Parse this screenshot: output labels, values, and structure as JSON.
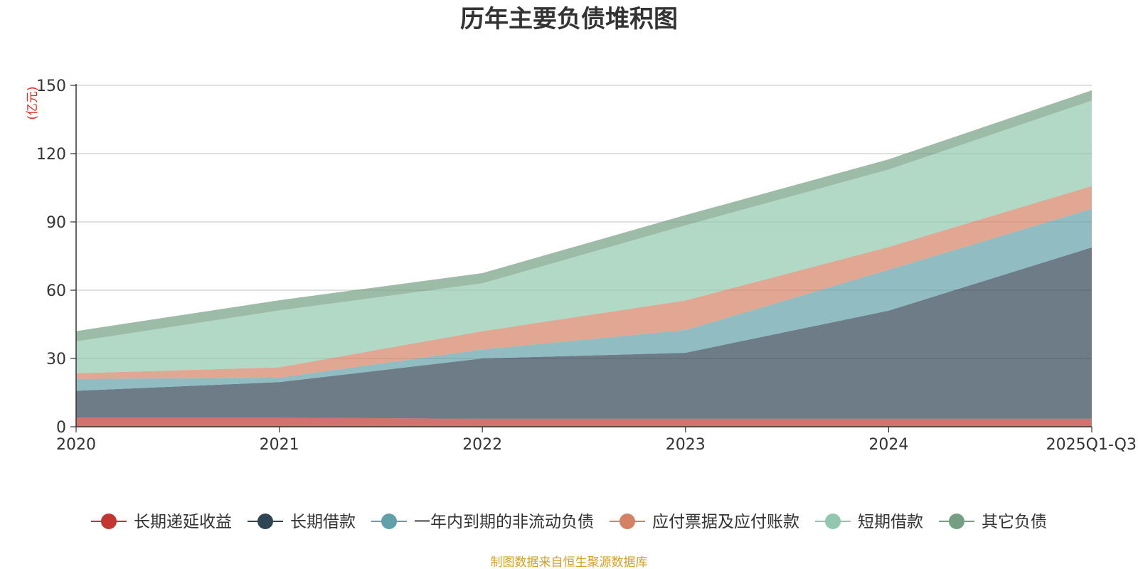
{
  "chart_data": {
    "type": "area",
    "stacked": true,
    "title": "历年主要负债堆积图",
    "unit_label": "(亿元)",
    "source_note": "制图数据来自恒生聚源数据库",
    "categories": [
      "2020",
      "2021",
      "2022",
      "2023",
      "2024",
      "2025Q1-Q3"
    ],
    "ylim": [
      0,
      150
    ],
    "yticks": [
      0,
      30,
      60,
      90,
      120,
      150
    ],
    "grid": true,
    "legend_position": "bottom",
    "series": [
      {
        "name": "长期递延收益",
        "color": "#c23531",
        "values": [
          4,
          4,
          3.5,
          3.5,
          3.5,
          3.5
        ]
      },
      {
        "name": "长期借款",
        "color": "#2f4554",
        "values": [
          11.8,
          15.6,
          26.5,
          29,
          47.5,
          75.3
        ]
      },
      {
        "name": "一年内到期的非流动负债",
        "color": "#61a0a8",
        "values": [
          5.2,
          2,
          4,
          10,
          18,
          17
        ]
      },
      {
        "name": "应付票据及应付账款",
        "color": "#d48265",
        "values": [
          2.5,
          4.5,
          8,
          13,
          10,
          10
        ]
      },
      {
        "name": "短期借款",
        "color": "#91c7ae",
        "values": [
          14,
          25,
          21,
          33,
          34,
          37.5
        ]
      },
      {
        "name": "其它负债",
        "color": "#749f83",
        "values": [
          4.5,
          4.5,
          4.5,
          4.5,
          4.5,
          4.5
        ]
      }
    ]
  }
}
